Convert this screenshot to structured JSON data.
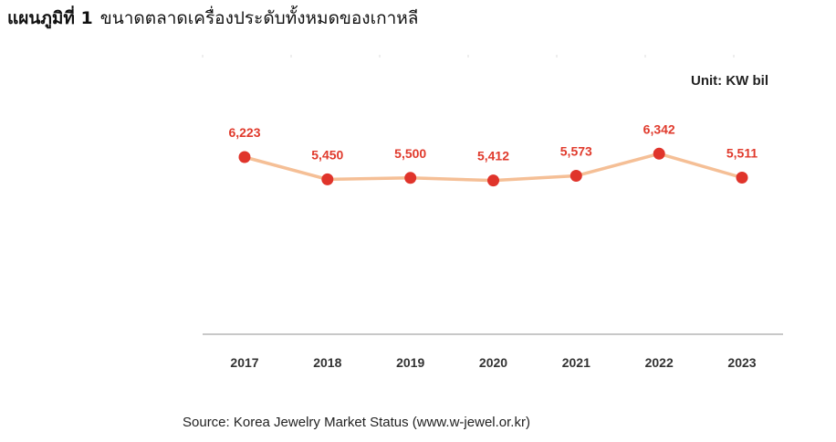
{
  "figure": {
    "label": "แผนภูมิที่ 1",
    "caption": "ขนาดตลาดเครื่องประดับทั้งหมดของเกาหลี",
    "source": "Source: Korea Jewelry Market Status (www.w-jewel.or.kr)"
  },
  "chart_data": {
    "type": "line",
    "title": "",
    "unit_label": "Unit: KW bil",
    "x": [
      "2017",
      "2018",
      "2019",
      "2020",
      "2021",
      "2022",
      "2023"
    ],
    "series": [
      {
        "values": [
          6223,
          5450,
          5500,
          5412,
          5573,
          6342,
          5511
        ],
        "labels": [
          "6,223",
          "5,450",
          "5,500",
          "5,412",
          "5,573",
          "6,342",
          "5,511"
        ]
      }
    ],
    "ylim": [
      0,
      7000
    ],
    "grid": false,
    "legend": "none",
    "colors": {
      "line": "#f5bf96",
      "marker": "#e0342b",
      "value_label": "#e03a2c",
      "axis": "#b5b5b5"
    }
  }
}
